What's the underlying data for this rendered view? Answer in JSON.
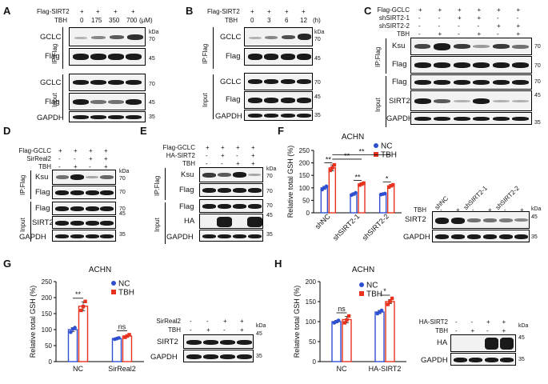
{
  "panels": {
    "A": {
      "letter": "A",
      "rows": [
        "Flag-SIRT2",
        "TBH"
      ],
      "flag_marks": [
        "+",
        "+",
        "+",
        "+"
      ],
      "tbh_doses": [
        "0",
        "175",
        "350",
        "700"
      ],
      "unit": "(μM)",
      "ip_label": "IP:Flag",
      "input_label": "Input",
      "blots": [
        "GCLC",
        "Flag",
        "GCLC",
        "Flag",
        "GAPDH"
      ],
      "kda": "kDa",
      "markers": [
        "70",
        "45",
        "70",
        "45",
        "35"
      ]
    },
    "B": {
      "letter": "B",
      "rows": [
        "Flag-SIRT2",
        "TBH"
      ],
      "flag_marks": [
        "+",
        "+",
        "+",
        "+"
      ],
      "tbh_times": [
        "0",
        "3",
        "6",
        "12"
      ],
      "unit": "(h)",
      "ip_label": "IP:Flag",
      "input_label": "Input",
      "blots": [
        "GCLC",
        "Flag",
        "GCLC",
        "Flag",
        "GAPDH"
      ],
      "kda": "kDa",
      "markers": [
        "70",
        "45",
        "70",
        "45",
        "35"
      ]
    },
    "C": {
      "letter": "C",
      "rows": [
        "Flag-GCLC",
        "shSIRT2-1",
        "shSIRT2-2",
        "TBH"
      ],
      "marks": [
        [
          "+",
          "+",
          "+",
          "+",
          "+",
          "+"
        ],
        [
          "-",
          "-",
          "+",
          "+",
          "-",
          "-"
        ],
        [
          "-",
          "-",
          "-",
          "-",
          "+",
          "+"
        ],
        [
          "-",
          "+",
          "-",
          "+",
          "-",
          "+"
        ]
      ],
      "ip_label": "IP:Flag",
      "input_label": "Input",
      "blots": [
        "Ksu",
        "Flag",
        "Flag",
        "SIRT2",
        "GAPDH"
      ],
      "markers": [
        "70",
        "70",
        "70",
        "45",
        "35"
      ]
    },
    "D": {
      "letter": "D",
      "rows": [
        "Flag-GCLC",
        "SirReal2",
        "TBH"
      ],
      "marks": [
        [
          "+",
          "+",
          "+",
          "+"
        ],
        [
          "-",
          "-",
          "+",
          "+"
        ],
        [
          "-",
          "+",
          "-",
          "+"
        ]
      ],
      "ip_label": "IP:Flag",
      "input_label": "Input",
      "blots": [
        "Ksu",
        "Flag",
        "Flag",
        "SIRT2",
        "GAPDH"
      ],
      "kda": "kDa",
      "markers": [
        "70",
        "70",
        "70",
        "45",
        "35"
      ]
    },
    "E": {
      "letter": "E",
      "rows": [
        "Flag-GCLC",
        "HA-SIRT2",
        "TBH"
      ],
      "marks": [
        [
          "+",
          "+",
          "+",
          "+"
        ],
        [
          "-",
          "+",
          "-",
          "+"
        ],
        [
          "-",
          "-",
          "+",
          "+"
        ]
      ],
      "ip_label": "IP:Flag",
      "input_label": "Input",
      "blots": [
        "Ksu",
        "Flag",
        "Flag",
        "HA",
        "GAPDH"
      ],
      "kda": "kDa",
      "markers": [
        "70",
        "70",
        "70",
        "45",
        "35"
      ]
    },
    "F": {
      "letter": "F",
      "title": "ACHN",
      "wb_rows": [
        "TBH"
      ],
      "wb_groups": [
        "shNC",
        "shSIRT2-1",
        "shSIRT2-2"
      ],
      "wb_marks": [
        "-",
        "+",
        "-",
        "+",
        "-",
        "+"
      ],
      "wb_blots": [
        "SIRT2",
        "GAPDH"
      ],
      "kda": "kDa",
      "markers": [
        "45",
        "35"
      ]
    },
    "G": {
      "letter": "G",
      "title": "ACHN",
      "wb_rows": [
        "SirReal2",
        "TBH"
      ],
      "wb_marks": [
        [
          "-",
          "-",
          "+",
          "+"
        ],
        [
          "-",
          "+",
          "-",
          "+"
        ]
      ],
      "wb_blots": [
        "SIRT2",
        "GAPDH"
      ],
      "kda": "kDa",
      "markers": [
        "45",
        "35"
      ]
    },
    "H": {
      "letter": "H",
      "title": "ACHN",
      "wb_rows": [
        "HA-SIRT2",
        "TBH"
      ],
      "wb_marks": [
        [
          "-",
          "-",
          "+",
          "+"
        ],
        [
          "-",
          "+",
          "-",
          "+"
        ]
      ],
      "wb_blots": [
        "HA",
        "GAPDH"
      ],
      "kda": "kDa",
      "markers": [
        "45",
        "35"
      ]
    }
  },
  "chart_data": [
    {
      "type": "bar",
      "panel": "F",
      "title": "ACHN",
      "ylabel": "Relative total GSH (%)",
      "categories": [
        "shNC",
        "shSIRT2-1",
        "shSIRT2-2"
      ],
      "ylim": [
        0,
        250
      ],
      "yticks": [
        "0",
        "50",
        "100",
        "150",
        "200",
        "250"
      ],
      "series": [
        {
          "name": "NC",
          "color": "#2e4fd1",
          "values": [
            100,
            75,
            75
          ],
          "errors": [
            6,
            5,
            3
          ],
          "points": [
            [
              93,
              100,
              106
            ],
            [
              71,
              75,
              80
            ],
            [
              73,
              75,
              77
            ]
          ]
        },
        {
          "name": "TBH",
          "color": "#e8321e",
          "values": [
            180,
            115,
            108
          ],
          "errors": [
            12,
            5,
            5
          ],
          "points": [
            [
              170,
              180,
              192
            ],
            [
              111,
              115,
              119
            ],
            [
              103,
              108,
              112
            ]
          ]
        }
      ],
      "significance": [
        "**",
        "**",
        "**",
        "**",
        "*"
      ]
    },
    {
      "type": "bar",
      "panel": "G",
      "title": "ACHN",
      "ylabel": "Relative total GSH (%)",
      "categories": [
        "NC",
        "SirReal2"
      ],
      "ylim": [
        0,
        250
      ],
      "yticks": [
        "0",
        "50",
        "100",
        "150",
        "200",
        "250"
      ],
      "series": [
        {
          "name": "NC",
          "color": "#2e4fd1",
          "values": [
            100,
            72
          ],
          "errors": [
            6,
            2
          ],
          "points": [
            [
              92,
              102,
              106
            ],
            [
              70,
              72,
              74
            ]
          ]
        },
        {
          "name": "TBH",
          "color": "#e8321e",
          "values": [
            173,
            80
          ],
          "errors": [
            14,
            4
          ],
          "points": [
            [
              160,
              172,
              188
            ],
            [
              76,
              80,
              84
            ]
          ]
        }
      ],
      "significance": [
        "**",
        "ns"
      ]
    },
    {
      "type": "bar",
      "panel": "H",
      "title": "ACHN",
      "ylabel": "Relative total GSH (%)",
      "categories": [
        "NC",
        "HA-SIRT2"
      ],
      "ylim": [
        0,
        200
      ],
      "yticks": [
        "0",
        "50",
        "100",
        "150",
        "200"
      ],
      "series": [
        {
          "name": "NC",
          "color": "#2e4fd1",
          "values": [
            100,
            124
          ],
          "errors": [
            3,
            4
          ],
          "points": [
            [
              97,
              100,
              103
            ],
            [
              120,
              124,
              128
            ]
          ]
        },
        {
          "name": "TBH",
          "color": "#e8321e",
          "values": [
            105,
            150
          ],
          "errors": [
            8,
            5
          ],
          "points": [
            [
              97,
              104,
              114
            ],
            [
              143,
              150,
              158
            ]
          ]
        }
      ],
      "significance": [
        "ns",
        "*"
      ]
    }
  ]
}
